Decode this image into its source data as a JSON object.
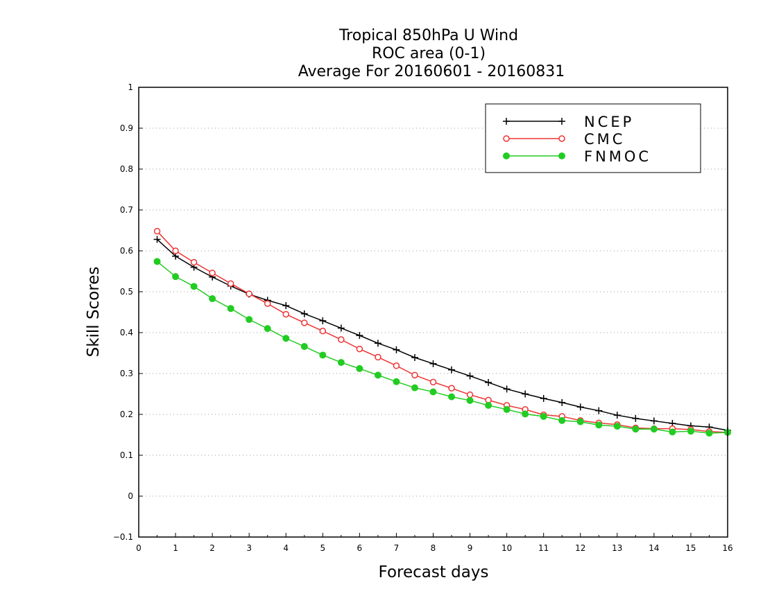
{
  "chart_data": {
    "type": "line",
    "title_lines": [
      "Tropical 850hPa U Wind",
      "ROC area (0-1)",
      "Average For 20160601 - 20160831"
    ],
    "xlabel": "Forecast days",
    "ylabel": "Skill Scores",
    "xlim": [
      0,
      16
    ],
    "ylim": [
      -0.1,
      1
    ],
    "x_ticks": [
      "0",
      "1",
      "2",
      "3",
      "4",
      "5",
      "6",
      "7",
      "8",
      "9",
      "10",
      "11",
      "12",
      "13",
      "14",
      "15",
      "16"
    ],
    "y_ticks": [
      "−0.1",
      "0",
      "0.1",
      "0.2",
      "0.3",
      "0.4",
      "0.5",
      "0.6",
      "0.7",
      "0.8",
      "0.9",
      "1"
    ],
    "grid": "horizontal-dotted",
    "legend_position": "top-right",
    "x": [
      0.5,
      1,
      1.5,
      2,
      2.5,
      3,
      3.5,
      4,
      4.5,
      5,
      5.5,
      6,
      6.5,
      7,
      7.5,
      8,
      8.5,
      9,
      9.5,
      10,
      10.5,
      11,
      11.5,
      12,
      12.5,
      13,
      13.5,
      14,
      14.5,
      15,
      15.5,
      16
    ],
    "series": [
      {
        "name": "NCEP",
        "color": "#000000",
        "marker": "plus",
        "values": [
          0.628,
          0.587,
          0.56,
          0.536,
          0.514,
          0.494,
          0.479,
          0.466,
          0.446,
          0.429,
          0.411,
          0.393,
          0.374,
          0.358,
          0.339,
          0.324,
          0.309,
          0.294,
          0.278,
          0.262,
          0.25,
          0.239,
          0.229,
          0.218,
          0.209,
          0.198,
          0.19,
          0.184,
          0.178,
          0.172,
          0.169,
          0.161
        ]
      },
      {
        "name": "CMC",
        "color": "#ee3333",
        "marker": "open-circle",
        "values": [
          0.648,
          0.6,
          0.572,
          0.546,
          0.52,
          0.495,
          0.471,
          0.445,
          0.424,
          0.404,
          0.383,
          0.36,
          0.34,
          0.319,
          0.296,
          0.279,
          0.264,
          0.248,
          0.235,
          0.222,
          0.212,
          0.199,
          0.195,
          0.185,
          0.179,
          0.175,
          0.167,
          0.165,
          0.165,
          0.163,
          0.158,
          0.156
        ]
      },
      {
        "name": "FNMOC",
        "color": "#22cc22",
        "marker": "filled-circle",
        "values": [
          0.574,
          0.537,
          0.513,
          0.483,
          0.459,
          0.432,
          0.41,
          0.386,
          0.366,
          0.345,
          0.327,
          0.312,
          0.296,
          0.28,
          0.265,
          0.255,
          0.243,
          0.234,
          0.222,
          0.212,
          0.201,
          0.195,
          0.185,
          0.182,
          0.174,
          0.171,
          0.164,
          0.164,
          0.157,
          0.159,
          0.154,
          0.156
        ]
      }
    ]
  }
}
